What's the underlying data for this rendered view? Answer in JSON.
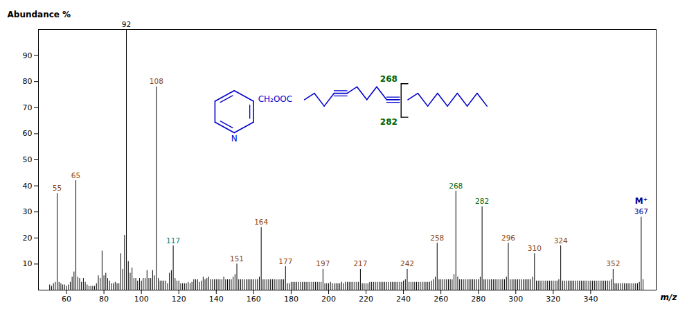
{
  "chart_data": {
    "type": "bar",
    "xlabel": "m/z",
    "ylabel": "Abundance %",
    "color": "black",
    "xlim": [
      45,
      375
    ],
    "ylim": [
      0,
      100
    ],
    "xticks": [
      60,
      80,
      100,
      120,
      140,
      160,
      180,
      200,
      220,
      240,
      260,
      280,
      300,
      320,
      340
    ],
    "yticks": [
      10,
      20,
      30,
      40,
      50,
      60,
      70,
      80,
      90
    ],
    "x": [
      51,
      52,
      53,
      54,
      55,
      56,
      57,
      58,
      59,
      60,
      61,
      62,
      63,
      64,
      65,
      66,
      67,
      68,
      69,
      70,
      71,
      72,
      73,
      74,
      75,
      76,
      77,
      78,
      79,
      80,
      81,
      82,
      83,
      84,
      85,
      86,
      87,
      88,
      89,
      90,
      91,
      92,
      93,
      94,
      95,
      96,
      97,
      98,
      99,
      100,
      101,
      102,
      103,
      104,
      105,
      106,
      107,
      108,
      109,
      110,
      111,
      112,
      113,
      114,
      115,
      116,
      117,
      118,
      119,
      120,
      121,
      122,
      123,
      124,
      125,
      126,
      127,
      128,
      129,
      130,
      131,
      132,
      133,
      134,
      135,
      136,
      137,
      138,
      139,
      140,
      141,
      142,
      143,
      144,
      145,
      146,
      147,
      148,
      149,
      150,
      151,
      152,
      153,
      154,
      155,
      156,
      157,
      158,
      159,
      160,
      161,
      162,
      163,
      164,
      165,
      166,
      167,
      168,
      169,
      170,
      171,
      172,
      173,
      174,
      175,
      176,
      177,
      178,
      179,
      180,
      181,
      182,
      183,
      184,
      185,
      186,
      187,
      188,
      189,
      190,
      191,
      192,
      193,
      194,
      195,
      196,
      197,
      198,
      199,
      200,
      201,
      202,
      203,
      204,
      205,
      206,
      207,
      208,
      209,
      210,
      211,
      212,
      213,
      214,
      215,
      216,
      217,
      218,
      219,
      220,
      221,
      222,
      223,
      224,
      225,
      226,
      227,
      228,
      229,
      230,
      231,
      232,
      233,
      234,
      235,
      236,
      237,
      238,
      239,
      240,
      241,
      242,
      243,
      244,
      245,
      246,
      247,
      248,
      249,
      250,
      251,
      252,
      253,
      254,
      255,
      256,
      257,
      258,
      259,
      260,
      261,
      262,
      263,
      264,
      265,
      266,
      267,
      268,
      269,
      270,
      271,
      272,
      273,
      274,
      275,
      276,
      277,
      278,
      279,
      280,
      281,
      282,
      283,
      284,
      285,
      286,
      287,
      288,
      289,
      290,
      291,
      292,
      293,
      294,
      295,
      296,
      297,
      298,
      299,
      300,
      301,
      302,
      303,
      304,
      305,
      306,
      307,
      308,
      309,
      310,
      311,
      312,
      313,
      314,
      315,
      316,
      317,
      318,
      319,
      320,
      321,
      322,
      323,
      324,
      325,
      326,
      327,
      328,
      329,
      330,
      331,
      332,
      333,
      334,
      335,
      336,
      337,
      338,
      339,
      340,
      341,
      342,
      343,
      344,
      345,
      346,
      347,
      348,
      349,
      350,
      351,
      352,
      353,
      354,
      355,
      356,
      357,
      358,
      359,
      360,
      361,
      362,
      363,
      364,
      365,
      366,
      367,
      368
    ],
    "values": [
      2,
      1.5,
      2.5,
      3,
      37,
      3,
      2.5,
      2,
      2,
      1.5,
      2,
      3,
      5,
      7,
      42,
      5,
      4.5,
      3,
      4.5,
      3,
      2,
      1.5,
      1.5,
      1.5,
      1.5,
      2.5,
      5.5,
      4.5,
      15,
      5.5,
      6.5,
      4.5,
      3.5,
      2.5,
      2.5,
      3,
      2.5,
      2.5,
      14,
      8,
      21,
      100,
      11,
      6.5,
      8.5,
      4.5,
      4.5,
      3.5,
      4.5,
      3.5,
      4.5,
      4.5,
      7.5,
      4.5,
      4.5,
      7.5,
      5.5,
      78,
      4.5,
      3.5,
      3.5,
      3.5,
      3.5,
      2.5,
      6.5,
      7.5,
      17,
      4.5,
      3.5,
      3.5,
      2.5,
      2.5,
      2.5,
      2.5,
      3,
      2.5,
      3,
      4,
      4,
      4,
      3,
      3.5,
      5,
      4,
      4.5,
      5,
      4,
      4,
      4,
      4,
      4,
      4,
      4,
      5,
      4,
      4,
      4,
      4,
      5,
      6,
      10,
      4,
      4,
      4,
      4,
      4,
      4,
      4,
      4,
      4,
      4,
      4,
      5,
      24,
      4,
      4,
      4,
      4,
      4,
      4,
      4,
      4,
      4,
      4,
      4,
      4,
      9,
      2.5,
      2.5,
      3,
      3,
      3,
      3,
      3,
      3,
      3,
      3,
      3,
      3,
      3,
      3,
      3,
      3,
      3,
      3,
      3,
      8,
      2.5,
      2.5,
      2.5,
      3,
      2.5,
      2.5,
      2.5,
      2.5,
      2.5,
      3,
      2.5,
      3,
      3,
      3,
      3,
      3,
      3,
      3,
      3,
      8,
      2.5,
      2.5,
      2.5,
      2.5,
      3,
      3,
      3,
      3,
      3,
      3,
      3,
      3,
      3,
      3,
      3,
      3,
      3,
      3,
      3,
      3,
      3,
      3,
      3.5,
      4,
      8,
      3,
      3,
      3,
      3,
      3,
      3,
      3,
      3,
      3,
      3,
      3,
      3,
      3.5,
      4,
      5,
      18,
      4,
      4,
      4,
      4,
      4,
      4,
      4,
      4,
      6,
      38,
      5,
      4,
      4,
      4,
      4,
      4,
      4,
      4,
      4,
      4,
      4,
      4,
      5,
      32,
      4,
      4,
      4,
      4,
      4,
      4,
      4,
      4,
      4,
      4,
      4,
      4,
      5,
      18,
      4,
      4,
      4,
      4,
      4,
      4,
      4,
      4,
      4,
      4,
      4,
      4,
      5,
      14,
      3.5,
      3.5,
      3.5,
      3.5,
      3.5,
      3.5,
      3.5,
      3.5,
      3.5,
      3.5,
      3.5,
      3.5,
      4,
      17,
      3.5,
      3.5,
      3.5,
      3.5,
      3.5,
      3.5,
      3.5,
      3.5,
      3.5,
      3.5,
      3.5,
      3.5,
      3.5,
      3.5,
      3.5,
      3.5,
      3.5,
      3.5,
      3.5,
      3.5,
      3.5,
      3.5,
      3.5,
      3.5,
      3.5,
      3.5,
      4,
      8,
      2.5,
      2.5,
      2.5,
      2.5,
      2.5,
      2.5,
      2.5,
      2.5,
      2.5,
      2.5,
      2.5,
      2.5,
      2.5,
      3,
      28,
      4
    ],
    "annotations": [
      {
        "text": "55",
        "x": 55,
        "y": 37,
        "color": "#8B4513"
      },
      {
        "text": "65",
        "x": 65,
        "y": 42,
        "color": "#8B4513"
      },
      {
        "text": "92",
        "x": 92,
        "y": 100,
        "color": "black"
      },
      {
        "text": "108",
        "x": 108,
        "y": 78,
        "color": "#8B4513"
      },
      {
        "text": "117",
        "x": 117,
        "y": 17,
        "color": "#008080"
      },
      {
        "text": "151",
        "x": 151,
        "y": 10,
        "color": "#8B4513"
      },
      {
        "text": "164",
        "x": 164,
        "y": 24,
        "color": "#8B4513"
      },
      {
        "text": "177",
        "x": 177,
        "y": 9,
        "color": "#8B4513"
      },
      {
        "text": "197",
        "x": 197,
        "y": 8,
        "color": "#8B4513"
      },
      {
        "text": "217",
        "x": 217,
        "y": 8,
        "color": "#8B4513"
      },
      {
        "text": "242",
        "x": 242,
        "y": 8,
        "color": "#8B4513"
      },
      {
        "text": "258",
        "x": 258,
        "y": 18,
        "color": "#8B4513"
      },
      {
        "text": "268",
        "x": 268,
        "y": 38,
        "color": "#006400"
      },
      {
        "text": "282",
        "x": 282,
        "y": 32,
        "color": "#006400"
      },
      {
        "text": "296",
        "x": 296,
        "y": 18,
        "color": "#8B4513"
      },
      {
        "text": "310",
        "x": 310,
        "y": 14,
        "color": "#8B4513"
      },
      {
        "text": "324",
        "x": 324,
        "y": 17,
        "color": "#8B4513"
      },
      {
        "text": "352",
        "x": 352,
        "y": 8,
        "color": "#8B4513"
      },
      {
        "text": "367",
        "x": 367,
        "y": 28,
        "color": "#00008B"
      },
      {
        "text": "M⁺",
        "x": 367,
        "y": 28,
        "color": "#00008B"
      },
      {
        "text": "N",
        "color": "#0000CD"
      },
      {
        "text": "CH₂OOC",
        "color": "#0000CD"
      },
      {
        "text": "268",
        "color": "#006400"
      },
      {
        "text": "282",
        "color": "#006400"
      }
    ]
  }
}
